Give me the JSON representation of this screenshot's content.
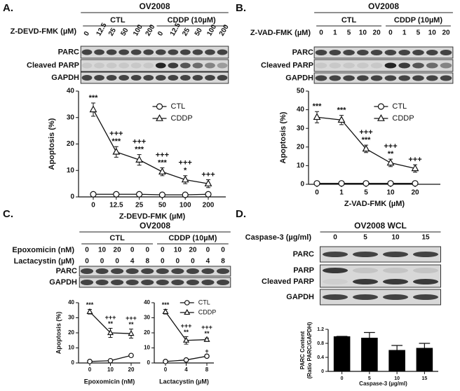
{
  "panels": [
    {
      "letter": "A.",
      "header": "OV2008",
      "groups": [
        "CTL",
        "CDDP (10µM)"
      ],
      "treatments": [
        {
          "label": "Z-DEVD-FMK (µM)",
          "lanes": [
            "0",
            "12.5",
            "25",
            "50",
            "100",
            "200",
            "0",
            "12.5",
            "25",
            "50",
            "100",
            "200"
          ]
        }
      ],
      "rows": [
        "PARC",
        "Cleaved PARP",
        "GAPDH"
      ]
    },
    {
      "letter": "B.",
      "header": "OV2008",
      "groups": [
        "CTL",
        "CDDP (10µM)"
      ],
      "treatments": [
        {
          "label": "Z-VAD-FMK (µM)",
          "lanes": [
            "0",
            "1",
            "5",
            "10",
            "20",
            "0",
            "1",
            "5",
            "10",
            "20"
          ]
        }
      ],
      "rows": [
        "PARC",
        "Cleaved PARP",
        "GAPDH"
      ]
    },
    {
      "letter": "C.",
      "header": "OV2008",
      "groups": [
        "CTL",
        "CDDP (10µM)"
      ],
      "treatments": [
        {
          "label": "Epoxomicin (nM)",
          "lanes": [
            "0",
            "10",
            "20",
            "0",
            "0",
            "0",
            "10",
            "20",
            "0",
            "0"
          ]
        },
        {
          "label": "Lactacystin (µM)",
          "lanes": [
            "0",
            "0",
            "0",
            "4",
            "8",
            "0",
            "0",
            "0",
            "4",
            "8"
          ]
        }
      ],
      "rows": [
        "PARC",
        "GAPDH"
      ]
    },
    {
      "letter": "D.",
      "header": "OV2008 WCL",
      "treatments": [
        {
          "label": "Caspase-3 (µg/ml)",
          "lanes": [
            "0",
            "5",
            "10",
            "15"
          ]
        }
      ],
      "rows": [
        "PARC",
        "PARP",
        "Cleaved PARP",
        "GAPDH"
      ]
    }
  ],
  "chart_data": [
    {
      "type": "line",
      "x_label": "Z-DEVD-FMK (µM)",
      "y_label": "Apoptosis (%)",
      "categories": [
        "0",
        "12.5",
        "25",
        "50",
        "100",
        "200"
      ],
      "ylim": [
        0,
        40
      ],
      "yticks": [
        0,
        10,
        20,
        30,
        40
      ],
      "legend": "upper right",
      "series": [
        {
          "name": "CTL",
          "marker": "circle",
          "values": [
            1,
            1,
            1,
            0.8,
            0.8,
            1
          ],
          "errors": [
            0.3,
            0.3,
            0.3,
            0.3,
            0.3,
            0.3
          ],
          "annotations": [
            [],
            [],
            [],
            [],
            [],
            []
          ]
        },
        {
          "name": "CDDP",
          "marker": "triangle",
          "values": [
            33,
            17,
            14,
            9.5,
            6.5,
            5
          ],
          "errors": [
            2.5,
            2,
            2,
            1.5,
            1.5,
            1.5
          ],
          "annotations": [
            [
              "***"
            ],
            [
              "+++",
              "***"
            ],
            [
              "+++",
              "***"
            ],
            [
              "+++",
              "***"
            ],
            [
              "+++",
              "*"
            ],
            [
              "+++"
            ]
          ]
        }
      ]
    },
    {
      "type": "line",
      "x_label": "Z-VAD-FMK (µM)",
      "y_label": "Apoptosis (%)",
      "categories": [
        "0",
        "1",
        "5",
        "10",
        "20"
      ],
      "ylim": [
        0,
        50
      ],
      "yticks": [
        0,
        10,
        20,
        30,
        40,
        50
      ],
      "legend": "upper right",
      "series": [
        {
          "name": "CTL",
          "marker": "circle",
          "values": [
            0.5,
            0.5,
            0.5,
            0.5,
            0.5
          ],
          "errors": [
            0.3,
            0.3,
            0.3,
            0.3,
            0.3
          ],
          "annotations": [
            [],
            [],
            [],
            [],
            []
          ]
        },
        {
          "name": "CDDP",
          "marker": "triangle",
          "values": [
            36,
            34.5,
            19,
            11.5,
            8.5
          ],
          "errors": [
            3,
            2.5,
            2,
            2,
            2
          ],
          "annotations": [
            [
              "***"
            ],
            [
              "***"
            ],
            [
              "+++",
              "***"
            ],
            [
              "+++",
              "**"
            ],
            [
              "+++"
            ]
          ]
        }
      ]
    },
    {
      "type": "line",
      "x_label": "Epoxomicin (nM)",
      "y_label": "Apoptosis (%)",
      "categories": [
        "0",
        "10",
        "20"
      ],
      "ylim": [
        0,
        40
      ],
      "yticks": [
        0,
        10,
        20,
        30,
        40
      ],
      "series": [
        {
          "marker": "circle",
          "values": [
            1,
            1.5,
            5
          ],
          "errors": [
            0.3,
            0.3,
            0.4
          ],
          "annotations": [
            [],
            [],
            []
          ]
        },
        {
          "marker": "triangle",
          "values": [
            34,
            20,
            19.5
          ],
          "errors": [
            1.5,
            3,
            3
          ],
          "annotations": [
            [
              "***"
            ],
            [
              "+++",
              "**"
            ],
            [
              "+++",
              "**"
            ]
          ]
        }
      ]
    },
    {
      "type": "line",
      "x_label": "Lactacystin (µM)",
      "categories": [
        "0",
        "4",
        "8"
      ],
      "ylim": [
        0,
        40
      ],
      "yticks": [
        0,
        10,
        20,
        30,
        40
      ],
      "legend": "upper right",
      "series": [
        {
          "name": "CTL",
          "marker": "circle",
          "values": [
            1,
            2,
            4.5
          ],
          "errors": [
            0.3,
            0.4,
            0.4
          ],
          "annotations": [
            [],
            [],
            [
              "+"
            ]
          ]
        },
        {
          "name": "CDDP",
          "marker": "triangle",
          "values": [
            34,
            15,
            15.5
          ],
          "errors": [
            1.5,
            2.5,
            1
          ],
          "annotations": [
            [
              "***"
            ],
            [
              "+++",
              "**"
            ],
            [
              "+++",
              "**"
            ]
          ]
        }
      ]
    },
    {
      "type": "bar",
      "x_label": "Caspase-3 (µg/ml)",
      "y_label": [
        "PARC Content",
        "(Ratio PARC/GAPDH)"
      ],
      "categories": [
        "0",
        "5",
        "10",
        "15"
      ],
      "values": [
        1.0,
        0.96,
        0.61,
        0.67
      ],
      "errors": [
        0,
        0.15,
        0.13,
        0.13
      ],
      "color": "#000000",
      "ylim": [
        0,
        1.2
      ],
      "yticks": [
        0,
        0.4,
        0.8,
        1.2
      ]
    }
  ]
}
